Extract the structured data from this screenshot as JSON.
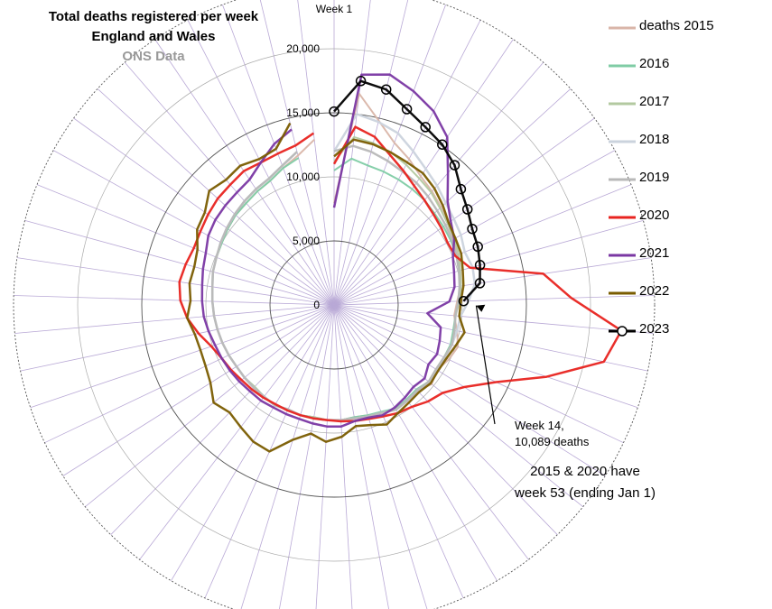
{
  "chart_data": {
    "type": "radar",
    "title": "Total deaths registered per week",
    "subtitle": "England and Wales",
    "source": "ONS Data",
    "top_label": "Week 1",
    "radial_ticks": [
      "0",
      "5,000",
      "10,000",
      "15,000",
      "20,000"
    ],
    "radial_max": 25000,
    "weeks": 53,
    "series": [
      {
        "name": "deaths 2015",
        "color": "#d9b5a8",
        "width": 2,
        "markers": false,
        "values": [
          7950,
          16600,
          14800,
          13500,
          12800,
          12100,
          11700,
          11300,
          10900,
          10600,
          10400,
          10200,
          10000,
          9600,
          9400,
          9800,
          10200,
          9900,
          9500,
          9800,
          9300,
          9400,
          9500,
          9200,
          9000,
          8900,
          9000,
          9000,
          8900,
          9000,
          8900,
          9100,
          9000,
          8900,
          9000,
          9000,
          9100,
          9200,
          9300,
          9400,
          9500,
          9600,
          9800,
          9900,
          10000,
          10200,
          10400,
          10500,
          10700,
          10900,
          11400,
          12000,
          13000
        ]
      },
      {
        "name": "2016",
        "color": "#7fcca5",
        "width": 2,
        "markers": false,
        "values": [
          10500,
          11500,
          11200,
          11100,
          11000,
          10900,
          10800,
          10600,
          10500,
          10400,
          10300,
          10100,
          9900,
          9700,
          9500,
          9500,
          9600,
          9500,
          9400,
          9500,
          9200,
          9300,
          9400,
          9100,
          9000,
          8900,
          9000,
          9000,
          8900,
          9000,
          8900,
          9100,
          9000,
          8900,
          9000,
          9000,
          9100,
          9200,
          9300,
          9400,
          9500,
          9600,
          9800,
          9900,
          10000,
          10200,
          10400,
          10500,
          10700,
          10900,
          11400,
          11800,
          null
        ]
      },
      {
        "name": "2017",
        "color": "#b3c9a0",
        "width": 2,
        "markers": false,
        "values": [
          11200,
          13200,
          13000,
          12700,
          12300,
          11900,
          11600,
          11200,
          10900,
          10700,
          10500,
          10200,
          10000,
          9800,
          9500,
          9600,
          9700,
          9500,
          9400,
          9500,
          9300,
          9400,
          9500,
          9200,
          9100,
          9000,
          9000,
          9000,
          8900,
          9000,
          8900,
          9100,
          9000,
          8900,
          9000,
          9000,
          9100,
          9200,
          9300,
          9400,
          9500,
          9600,
          9800,
          9900,
          10100,
          10300,
          10500,
          10700,
          10900,
          11100,
          11600,
          12300,
          null
        ]
      },
      {
        "name": "2018",
        "color": "#cbd3dd",
        "width": 2.5,
        "markers": false,
        "values": [
          12000,
          15000,
          14700,
          14300,
          13500,
          12800,
          12300,
          11800,
          11500,
          11300,
          11000,
          11200,
          11100,
          10500,
          9900,
          9800,
          9700,
          9600,
          9500,
          9600,
          9400,
          9400,
          9500,
          9200,
          9100,
          9000,
          9000,
          9000,
          9000,
          9000,
          8900,
          9100,
          9000,
          9000,
          9000,
          9000,
          9100,
          9200,
          9300,
          9400,
          9500,
          9600,
          9800,
          9900,
          10100,
          10300,
          10500,
          10700,
          10900,
          11100,
          11600,
          12300,
          null
        ]
      },
      {
        "name": "2019",
        "color": "#b8b8b8",
        "width": 2.5,
        "markers": false,
        "values": [
          12000,
          12500,
          12300,
          12000,
          11700,
          11500,
          11200,
          10900,
          10700,
          10500,
          10300,
          10100,
          9900,
          9700,
          9500,
          9600,
          9700,
          9500,
          9400,
          9500,
          9300,
          9400,
          9500,
          9200,
          9100,
          9000,
          9000,
          9000,
          9000,
          9000,
          8900,
          9100,
          9000,
          9000,
          9000,
          9000,
          9100,
          9200,
          9300,
          9400,
          9500,
          9600,
          9800,
          9900,
          10100,
          10300,
          10500,
          10700,
          10900,
          11100,
          11600,
          12300,
          null
        ]
      },
      {
        "name": "2020",
        "color": "#e8231f",
        "width": 2.5,
        "markers": false,
        "values": [
          11000,
          14000,
          13500,
          12500,
          11800,
          11200,
          10800,
          10500,
          10300,
          10100,
          10200,
          11000,
          16500,
          18500,
          22500,
          21500,
          17500,
          14000,
          12000,
          10900,
          10500,
          10000,
          9800,
          9500,
          9300,
          9200,
          9100,
          9000,
          9000,
          9000,
          9000,
          9000,
          9100,
          9200,
          9300,
          9500,
          9700,
          10100,
          10800,
          11500,
          12000,
          12200,
          12000,
          11800,
          11900,
          12100,
          12300,
          12400,
          12600,
          12500,
          12600,
          12800,
          13500
        ]
      },
      {
        "name": "2021",
        "color": "#7a37a3",
        "width": 2.5,
        "markers": false,
        "values": [
          7600,
          18100,
          18500,
          17800,
          17000,
          15800,
          13600,
          12000,
          11200,
          10700,
          10000,
          9700,
          9500,
          9000,
          7300,
          8500,
          8700,
          8900,
          8700,
          9100,
          8900,
          9100,
          9300,
          9400,
          9200,
          9200,
          9500,
          9500,
          9400,
          9300,
          9300,
          9300,
          9400,
          9400,
          9500,
          9600,
          9700,
          9800,
          10000,
          10200,
          10300,
          10400,
          10600,
          10800,
          11200,
          11400,
          11500,
          11600,
          11800,
          12500,
          13400,
          14100,
          null
        ]
      },
      {
        "name": "2022",
        "color": "#7a5c00",
        "width": 2.5,
        "markers": false,
        "values": [
          11600,
          13000,
          12900,
          12700,
          12500,
          12400,
          12000,
          11500,
          11000,
          10800,
          10700,
          10400,
          10200,
          9900,
          9800,
          10400,
          10000,
          9700,
          9600,
          9700,
          9500,
          9600,
          9800,
          10200,
          9800,
          9600,
          10300,
          10700,
          10200,
          11000,
          12500,
          12400,
          12000,
          11700,
          12100,
          11400,
          11100,
          11000,
          11100,
          11500,
          11200,
          11400,
          11300,
          11500,
          12200,
          12400,
          13200,
          12900,
          13100,
          12800,
          13000,
          14600,
          null
        ]
      },
      {
        "name": "2023",
        "color": "#000000",
        "width": 2.5,
        "markers": true,
        "values": [
          15100,
          17600,
          17300,
          16300,
          15600,
          15100,
          14400,
          13400,
          12800,
          12300,
          12100,
          11800,
          11500,
          10100,
          null,
          null,
          null,
          null,
          null,
          null,
          null,
          null,
          null,
          null,
          null,
          null,
          null,
          null,
          null,
          null,
          null,
          null,
          null,
          null,
          null,
          null,
          null,
          null,
          null,
          null,
          null,
          null,
          null,
          null,
          null,
          null,
          null,
          null,
          null,
          null,
          null,
          null,
          null
        ]
      }
    ],
    "annotations": {
      "week14_line1": "Week 14,",
      "week14_line2": "10,089 deaths",
      "note_line1": "2015 & 2020 have",
      "note_line2": "week 53 (ending Jan 1)"
    },
    "grid": true
  }
}
